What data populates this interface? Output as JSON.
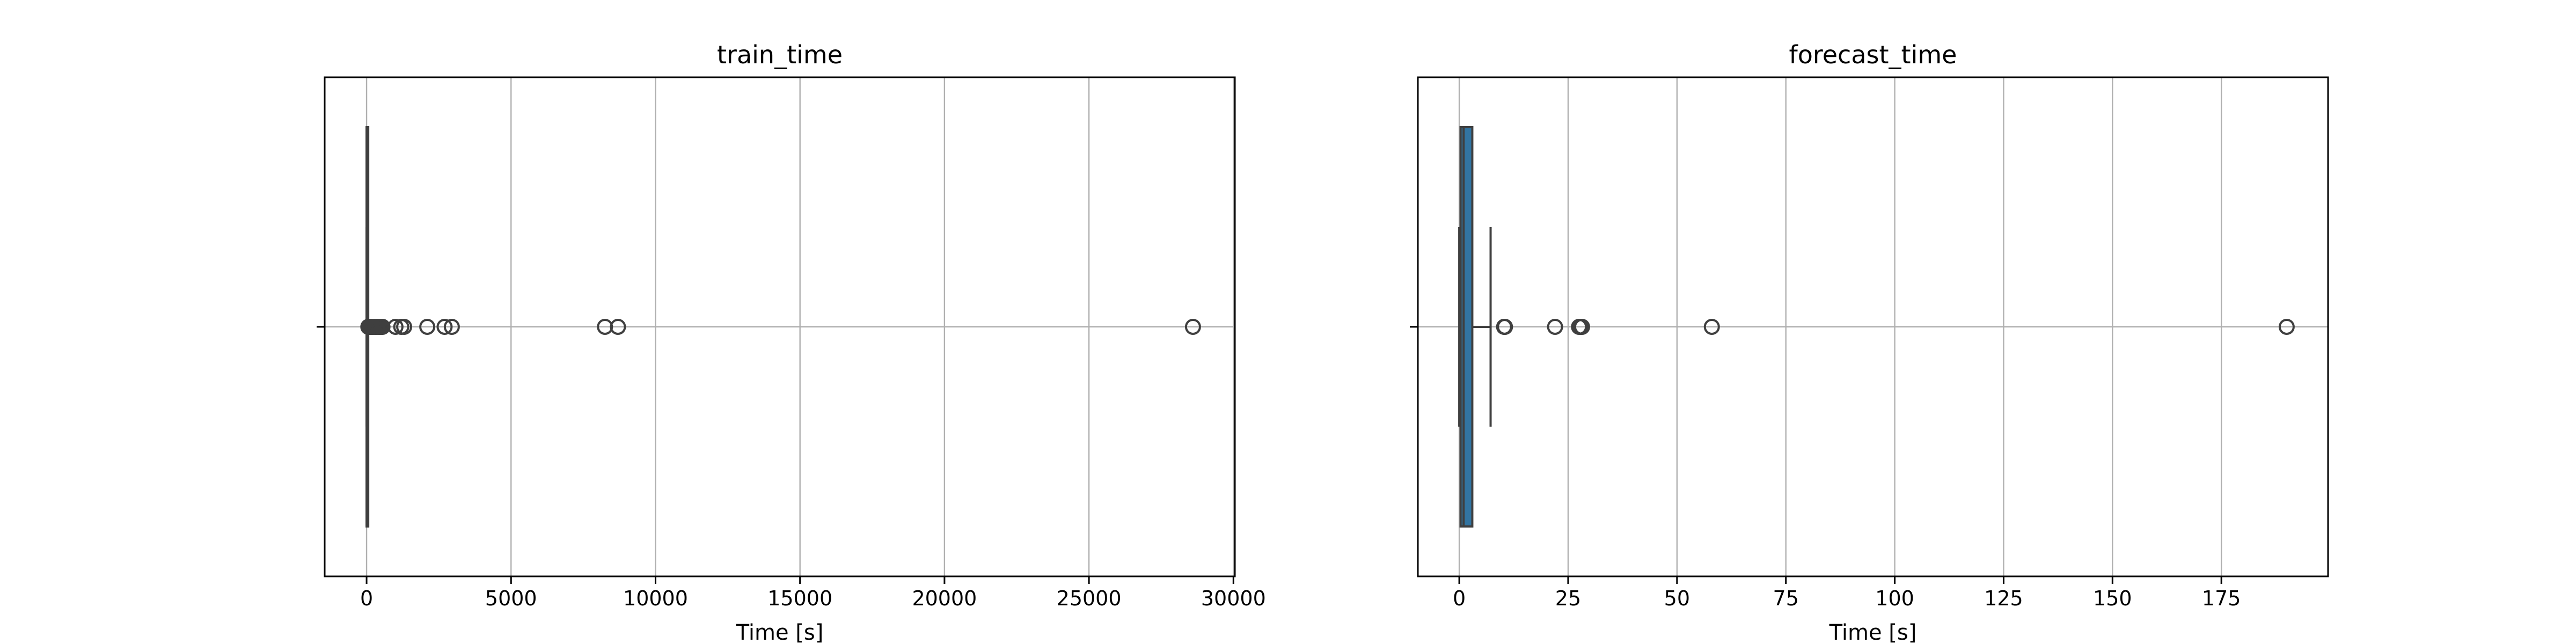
{
  "chart_data": [
    {
      "type": "box",
      "orientation": "horizontal",
      "title": "train_time",
      "xlabel": "Time [s]",
      "ylabel": "",
      "xlim": [
        -1450,
        30050
      ],
      "xticks": [
        0,
        5000,
        10000,
        15000,
        20000,
        25000,
        30000
      ],
      "xtick_labels": [
        "0",
        "5000",
        "10000",
        "15000",
        "20000",
        "25000",
        "30000"
      ],
      "grid": true,
      "box": {
        "q1": 1,
        "median": 3,
        "q3": 12,
        "whisker_low": 0,
        "whisker_high": 30
      },
      "outliers": [
        60,
        100,
        130,
        160,
        200,
        250,
        300,
        350,
        400,
        450,
        500,
        550,
        1000,
        1200,
        1300,
        2100,
        2700,
        2950,
        8250,
        8700,
        28600
      ],
      "box_color": "#3274a1",
      "line_color": "#3f3f3f"
    },
    {
      "type": "box",
      "orientation": "horizontal",
      "title": "forecast_time",
      "xlabel": "Time [s]",
      "ylabel": "",
      "xlim": [
        -9.5,
        199.5
      ],
      "xticks": [
        0,
        25,
        50,
        75,
        100,
        125,
        150,
        175
      ],
      "xtick_labels": [
        "0",
        "25",
        "50",
        "75",
        "100",
        "125",
        "150",
        "175"
      ],
      "grid": true,
      "box": {
        "q1": 0.3,
        "median": 1.0,
        "q3": 3.0,
        "whisker_low": 0,
        "whisker_high": 7.2
      },
      "outliers": [
        10.3,
        10.5,
        22.0,
        27.5,
        27.9,
        28.2,
        58.0,
        190.0
      ],
      "box_color": "#3274a1",
      "line_color": "#3f3f3f"
    }
  ]
}
